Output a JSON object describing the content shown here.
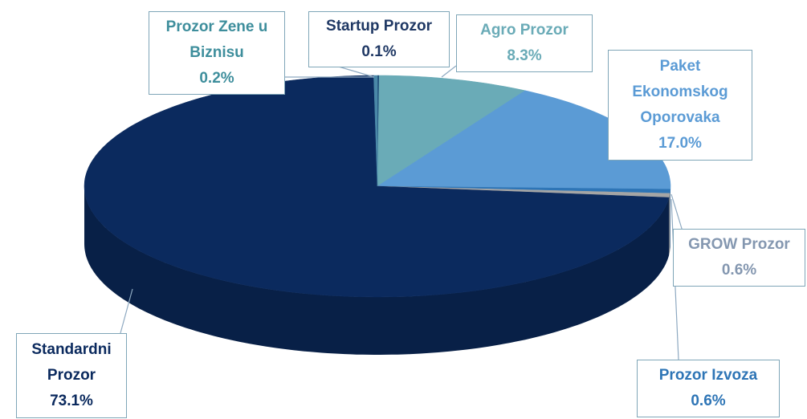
{
  "chart_data": {
    "type": "pie3d",
    "series": [
      {
        "name": "Startup Prozor",
        "value": 0.1,
        "value_label": "0.1%",
        "color": "#1f4e79"
      },
      {
        "name": "Agro Prozor",
        "value": 8.3,
        "value_label": "8.3%",
        "color": "#6aabb7"
      },
      {
        "name": "Paket Ekonomskog Oporovaka",
        "value": 17.0,
        "value_label": "17.0%",
        "color": "#5b9bd5"
      },
      {
        "name": "Prozor Izvoza",
        "value": 0.6,
        "value_label": "0.6%",
        "color": "#2e75b6"
      },
      {
        "name": "GROW Prozor",
        "value": 0.6,
        "value_label": "0.6%",
        "color": "#a5a5a5"
      },
      {
        "name": "Standardni Prozor",
        "value": 73.1,
        "value_label": "73.1%",
        "color": "#0b2a5e"
      },
      {
        "name": "Prozor Zene u Biznisu",
        "value": 0.2,
        "value_label": "0.2%",
        "color": "#4a88a8"
      }
    ]
  }
}
